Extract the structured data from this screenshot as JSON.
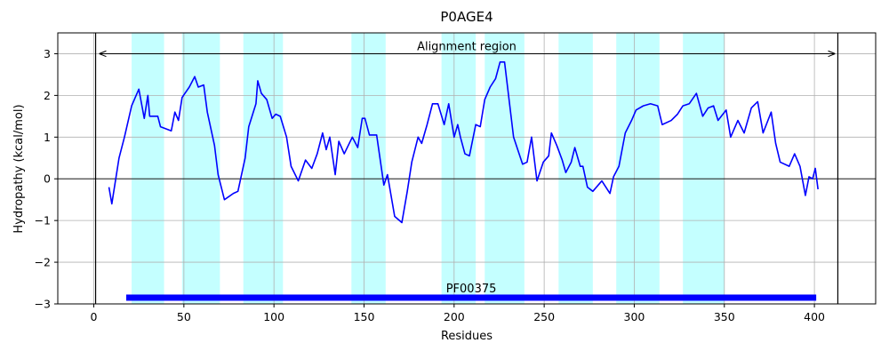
{
  "chart_data": {
    "type": "line",
    "title": "P0AGE4",
    "xlabel": "Residues",
    "ylabel": "Hydropathy (kcal/mol)",
    "xlim": [
      -20,
      434
    ],
    "ylim": [
      -3,
      3.5
    ],
    "xticks": [
      0,
      50,
      100,
      150,
      200,
      250,
      300,
      350,
      400
    ],
    "yticks": [
      {
        "value": -3,
        "label": "−3"
      },
      {
        "value": -2,
        "label": "−2"
      },
      {
        "value": -1,
        "label": "−1"
      },
      0,
      1,
      2,
      3
    ],
    "grid": true,
    "x": [
      8.4,
      10,
      14,
      17,
      21,
      25,
      28,
      30,
      31,
      35.5,
      37,
      43,
      45,
      47,
      49,
      53,
      56,
      58,
      61,
      63,
      67,
      69,
      72.5,
      77.5,
      80,
      84,
      86,
      90,
      91,
      93,
      96,
      99,
      101,
      103.5,
      107,
      109.5,
      113.5,
      117.5,
      121,
      124,
      127,
      129,
      131,
      134,
      136,
      139,
      143.5,
      146.5,
      149,
      150.5,
      153,
      157,
      161,
      163,
      167,
      171,
      174,
      176.5,
      180,
      182,
      185,
      188,
      191,
      194.5,
      197,
      200,
      202,
      203.5,
      206,
      208.5,
      212,
      214.5,
      217,
      220,
      223,
      225.5,
      228,
      230.5,
      233,
      238,
      240.5,
      243,
      246,
      249.5,
      252.5,
      254,
      257,
      260,
      262,
      265,
      267,
      270,
      271.5,
      274,
      277,
      282,
      286.5,
      288.5,
      291.5,
      295,
      298.5,
      301,
      305,
      309,
      313,
      315.5,
      320.5,
      324,
      327,
      330.5,
      334.5,
      338,
      341,
      344,
      346.5,
      351,
      353.5,
      357.5,
      361,
      365,
      368.5,
      371.5,
      376,
      378.5,
      381,
      386,
      389,
      392,
      395,
      397,
      399,
      400.5,
      402
    ],
    "series": [
      {
        "color": "#0000ff",
        "values": [
          -0.2,
          -0.6,
          0.5,
          1.0,
          1.75,
          2.15,
          1.45,
          2.0,
          1.5,
          1.5,
          1.25,
          1.15,
          1.6,
          1.4,
          1.95,
          2.2,
          2.45,
          2.2,
          2.25,
          1.6,
          0.8,
          0.1,
          -0.5,
          -0.35,
          -0.3,
          0.5,
          1.25,
          1.8,
          2.35,
          2.05,
          1.9,
          1.45,
          1.55,
          1.5,
          1.0,
          0.3,
          -0.05,
          0.45,
          0.25,
          0.6,
          1.1,
          0.7,
          1.0,
          0.1,
          0.9,
          0.6,
          1.0,
          0.75,
          1.45,
          1.45,
          1.05,
          1.05,
          -0.15,
          0.1,
          -0.9,
          -1.05,
          -0.3,
          0.4,
          1.0,
          0.85,
          1.3,
          1.8,
          1.8,
          1.3,
          1.8,
          1.0,
          1.3,
          1.0,
          0.6,
          0.55,
          1.3,
          1.25,
          1.9,
          2.2,
          2.4,
          2.8,
          2.8,
          1.9,
          1.0,
          0.35,
          0.4,
          1.0,
          -0.05,
          0.4,
          0.55,
          1.1,
          0.8,
          0.45,
          0.15,
          0.4,
          0.75,
          0.3,
          0.3,
          -0.2,
          -0.3,
          -0.05,
          -0.35,
          0.05,
          0.3,
          1.1,
          1.4,
          1.65,
          1.75,
          1.8,
          1.75,
          1.3,
          1.4,
          1.55,
          1.75,
          1.8,
          2.05,
          1.5,
          1.7,
          1.75,
          1.4,
          1.65,
          1.0,
          1.4,
          1.1,
          1.7,
          1.85,
          1.1,
          1.6,
          0.85,
          0.4,
          0.3,
          0.6,
          0.3,
          -0.4,
          0.05,
          0.0,
          0.25,
          -0.25
        ]
      }
    ],
    "bands": {
      "color": "#c4ffff",
      "ranges": [
        [
          21,
          39
        ],
        [
          49,
          70
        ],
        [
          83,
          105
        ],
        [
          143,
          162
        ],
        [
          193,
          212
        ],
        [
          217,
          239
        ],
        [
          258,
          277
        ],
        [
          290,
          314
        ],
        [
          327,
          350
        ]
      ]
    },
    "alignment_region": {
      "label": "Alignment region",
      "start": 1,
      "end": 413
    },
    "domain": {
      "label": "PF00375",
      "start": 18,
      "end": 401,
      "y": -2.85,
      "color": "#0000ff"
    }
  }
}
